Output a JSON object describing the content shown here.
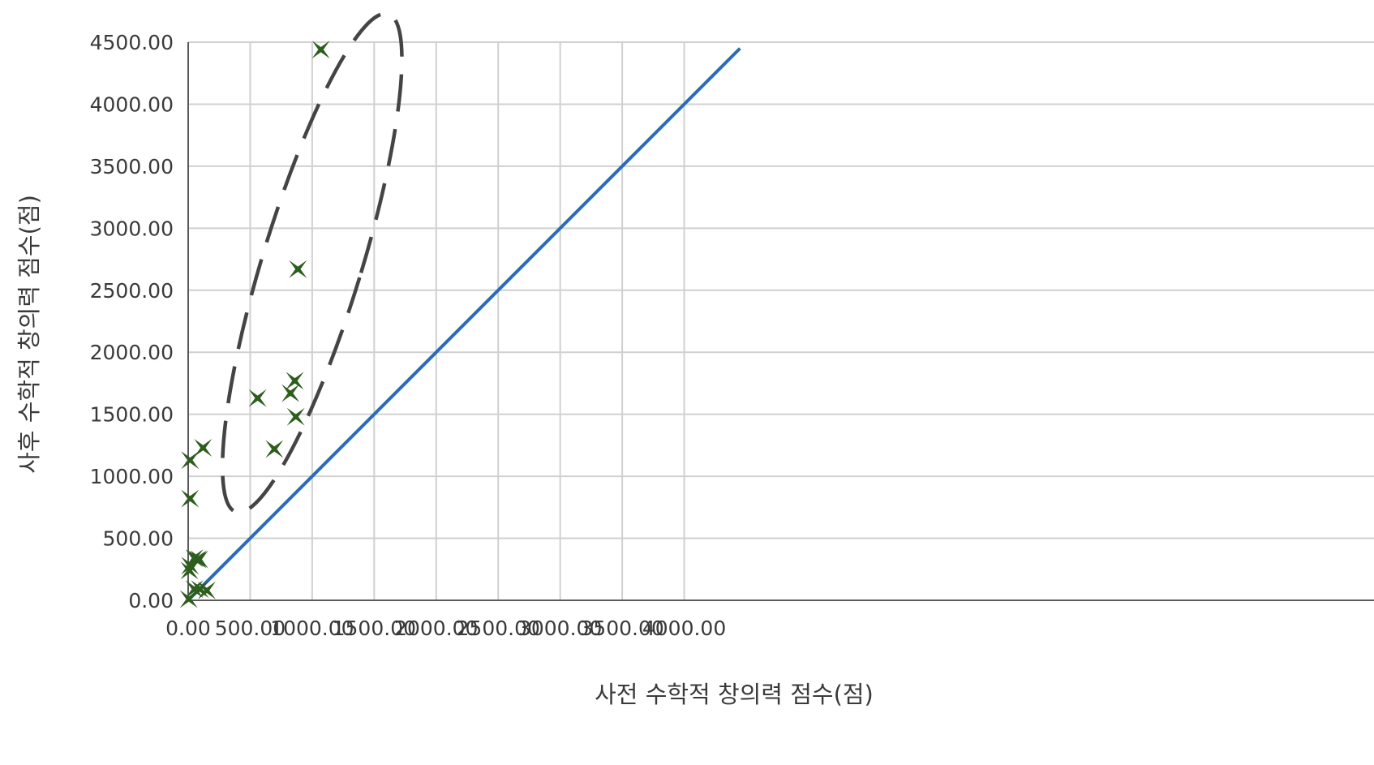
{
  "chart_data": {
    "type": "scatter",
    "title": "",
    "xlabel": "사전 수학적 창의력 점수(점)",
    "ylabel": "사후 수학적 창의력 점수(점)",
    "xlim": [
      0,
      4450
    ],
    "ylim": [
      0,
      4500
    ],
    "x_ticks": [
      0,
      500,
      1000,
      1500,
      2000,
      2500,
      3000,
      3500,
      4000
    ],
    "x_tick_labels": [
      "0.00",
      "500.00",
      "1000.00",
      "1500.00",
      "2000.00",
      "2500.00",
      "3000.00",
      "3500.00",
      "4000.00"
    ],
    "y_ticks": [
      0,
      500,
      1000,
      1500,
      2000,
      2500,
      3000,
      3500,
      4000,
      4500
    ],
    "y_tick_labels": [
      "0.00",
      "500.00",
      "1000.00",
      "1500.00",
      "2000.00",
      "2500.00",
      "3000.00",
      "3500.00",
      "4000.00",
      "4500.00"
    ],
    "grid": true,
    "legend": "none",
    "marker_color": "#2e5e1e",
    "reference_line": {
      "x": [
        0,
        4450
      ],
      "y": [
        0,
        4450
      ],
      "color": "#2a6db5"
    },
    "highlight_ellipse": {
      "cx": 1000,
      "cy": 2720,
      "rx": 400,
      "ry": 2100,
      "rotation_deg": 17,
      "color": "#444444"
    },
    "points": [
      {
        "x": 1070,
        "y": 4440
      },
      {
        "x": 885,
        "y": 2670
      },
      {
        "x": 860,
        "y": 1770
      },
      {
        "x": 825,
        "y": 1670
      },
      {
        "x": 868,
        "y": 1480
      },
      {
        "x": 560,
        "y": 1630
      },
      {
        "x": 695,
        "y": 1220
      },
      {
        "x": 120,
        "y": 1230
      },
      {
        "x": 15,
        "y": 1130
      },
      {
        "x": 15,
        "y": 820
      },
      {
        "x": 50,
        "y": 340
      },
      {
        "x": 75,
        "y": 330
      },
      {
        "x": 90,
        "y": 330
      },
      {
        "x": 15,
        "y": 280
      },
      {
        "x": 10,
        "y": 240
      },
      {
        "x": 50,
        "y": 90
      },
      {
        "x": 95,
        "y": 90
      },
      {
        "x": 150,
        "y": 80
      },
      {
        "x": 5,
        "y": 10
      }
    ]
  }
}
